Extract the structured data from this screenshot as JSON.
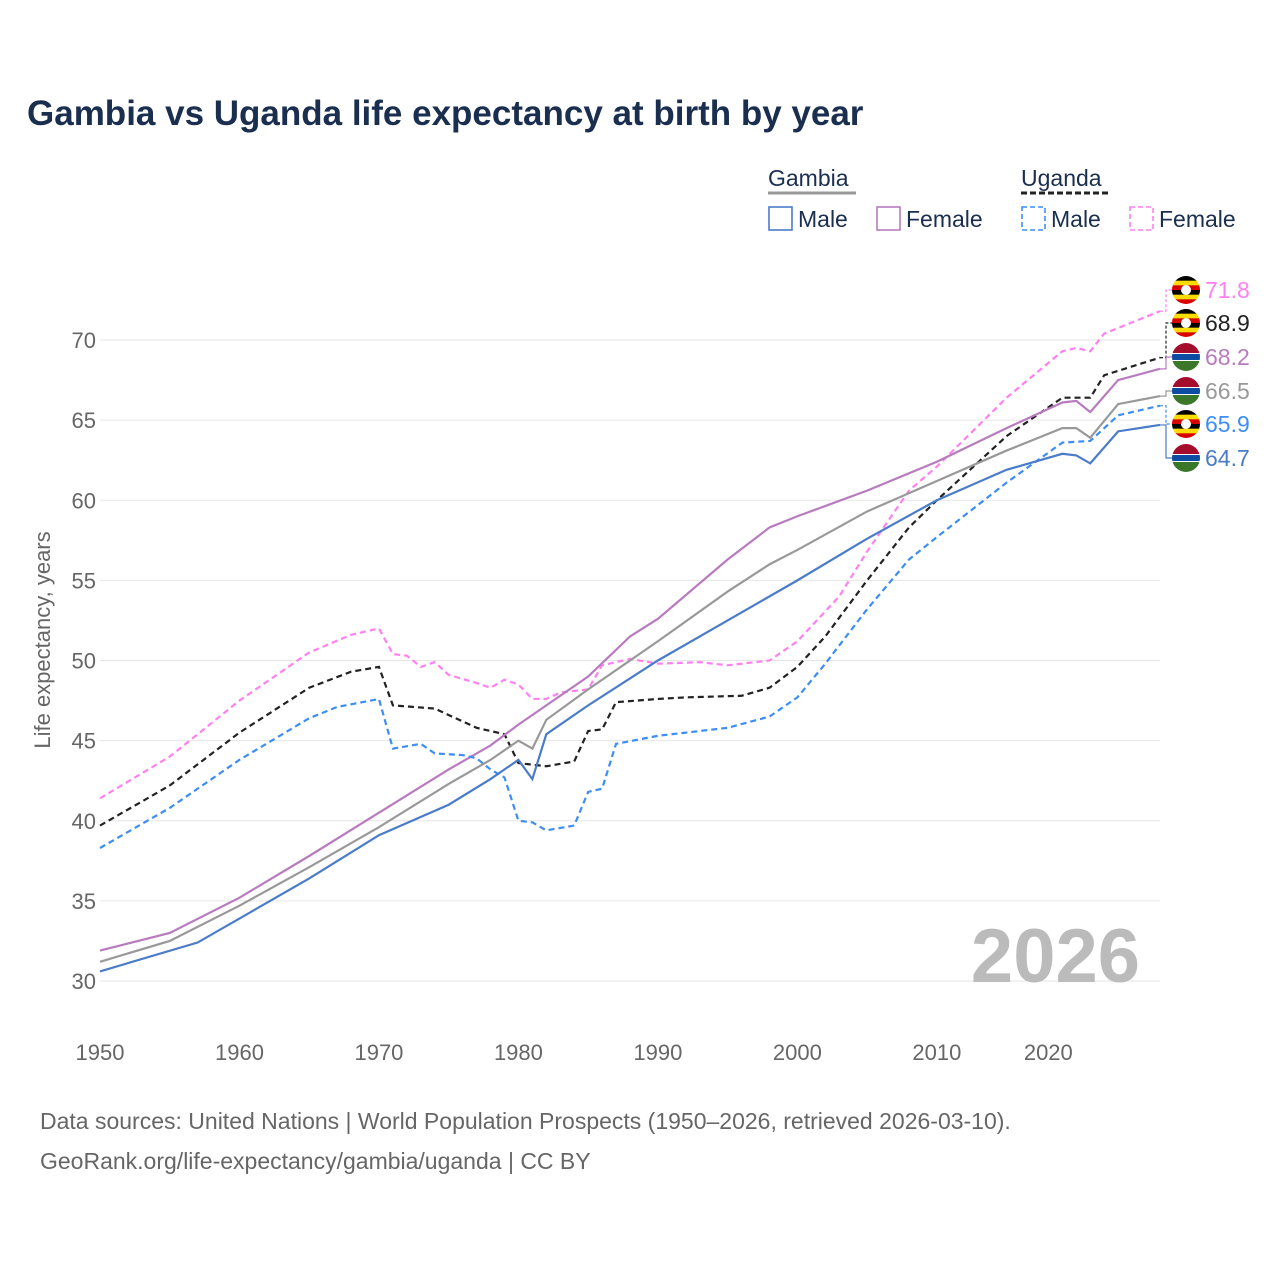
{
  "chart_data": {
    "type": "line",
    "title": "Gambia vs Uganda life expectancy at birth by year",
    "ylabel": "Life expectancy, years",
    "xlabel": "",
    "xlim": [
      1950,
      2026
    ],
    "ylim": [
      27.5,
      72
    ],
    "xticks": [
      1950,
      1960,
      1970,
      1980,
      1990,
      2000,
      2010,
      2020
    ],
    "yticks": [
      30,
      35,
      40,
      45,
      50,
      55,
      60,
      65,
      70
    ],
    "grid": true,
    "watermark": "2026",
    "legend": {
      "groups": [
        {
          "name": "Gambia",
          "items": [
            "Male",
            "Female"
          ]
        },
        {
          "name": "Uganda",
          "items": [
            "Male",
            "Female"
          ]
        }
      ],
      "placement": "top-right"
    },
    "series": [
      {
        "name": "Uganda Female",
        "country": "Uganda",
        "color": "#ff80f0",
        "dashed": true,
        "label": "71.8",
        "x": [
          1950,
          1955,
          1960,
          1965,
          1968,
          1970,
          1971,
          1972,
          1973,
          1974,
          1975,
          1977,
          1978,
          1979,
          1980,
          1981,
          1982,
          1983,
          1985,
          1986,
          1988,
          1990,
          1993,
          1995,
          1998,
          2000,
          2003,
          2005,
          2008,
          2010,
          2015,
          2019,
          2020,
          2021,
          2022,
          2026
        ],
        "y": [
          41.4,
          44.0,
          47.5,
          50.5,
          51.6,
          52.0,
          50.4,
          50.3,
          49.6,
          49.9,
          49.1,
          48.6,
          48.3,
          48.8,
          48.5,
          47.6,
          47.6,
          48.0,
          48.2,
          49.7,
          50.1,
          49.8,
          49.9,
          49.7,
          50.0,
          51.2,
          54.0,
          56.8,
          60.6,
          62.1,
          66.4,
          69.3,
          69.5,
          69.3,
          70.4,
          71.8
        ]
      },
      {
        "name": "Uganda",
        "country": "Uganda",
        "color": "#222222",
        "dashed": true,
        "label": "68.9",
        "x": [
          1950,
          1955,
          1960,
          1965,
          1968,
          1970,
          1971,
          1974,
          1977,
          1979,
          1980,
          1982,
          1984,
          1985,
          1986,
          1987,
          1990,
          1992,
          1996,
          1998,
          2000,
          2002,
          2005,
          2008,
          2010,
          2015,
          2019,
          2021,
          2022,
          2026
        ],
        "y": [
          39.7,
          42.2,
          45.5,
          48.3,
          49.3,
          49.6,
          47.2,
          47.0,
          45.8,
          45.4,
          43.6,
          43.4,
          43.7,
          45.6,
          45.7,
          47.4,
          47.6,
          47.7,
          47.8,
          48.3,
          49.6,
          51.5,
          55.0,
          58.3,
          60.0,
          64.0,
          66.4,
          66.4,
          67.8,
          68.9
        ]
      },
      {
        "name": "Gambia Female",
        "country": "Gambia",
        "color": "#b87bbf",
        "dashed": false,
        "label": "68.2",
        "x": [
          1950,
          1955,
          1960,
          1965,
          1970,
          1975,
          1978,
          1980,
          1982,
          1985,
          1988,
          1990,
          1995,
          1998,
          2000,
          2005,
          2010,
          2015,
          2019,
          2020,
          2021,
          2023,
          2026
        ],
        "y": [
          31.9,
          33.0,
          35.2,
          37.8,
          40.5,
          43.2,
          44.7,
          46.0,
          47.2,
          49.0,
          51.5,
          52.6,
          56.3,
          58.3,
          59.0,
          60.6,
          62.4,
          64.5,
          66.1,
          66.2,
          65.5,
          67.5,
          68.2
        ]
      },
      {
        "name": "Gambia",
        "country": "Gambia",
        "color": "#999999",
        "dashed": false,
        "label": "66.5",
        "x": [
          1950,
          1955,
          1960,
          1965,
          1970,
          1975,
          1978,
          1980,
          1981,
          1982,
          1985,
          1990,
          1995,
          1998,
          2000,
          2005,
          2010,
          2015,
          2019,
          2020,
          2021,
          2023,
          2026
        ],
        "y": [
          31.2,
          32.5,
          34.7,
          37.1,
          39.6,
          42.3,
          43.8,
          45.0,
          44.5,
          46.3,
          48.2,
          51.2,
          54.3,
          56.0,
          56.9,
          59.3,
          61.2,
          63.1,
          64.5,
          64.5,
          63.9,
          66.0,
          66.5
        ]
      },
      {
        "name": "Uganda Male",
        "country": "Uganda",
        "color": "#3d8df5",
        "dashed": true,
        "label": "65.9",
        "x": [
          1950,
          1955,
          1960,
          1965,
          1967,
          1970,
          1971,
          1973,
          1974,
          1976,
          1977,
          1978,
          1979,
          1980,
          1981,
          1982,
          1984,
          1985,
          1986,
          1987,
          1990,
          1995,
          1998,
          2000,
          2002,
          2005,
          2008,
          2010,
          2015,
          2019,
          2021,
          2023,
          2026
        ],
        "y": [
          38.3,
          40.8,
          43.8,
          46.4,
          47.1,
          47.6,
          44.5,
          44.8,
          44.2,
          44.1,
          43.9,
          43.2,
          42.7,
          40.0,
          39.9,
          39.4,
          39.7,
          41.8,
          42.0,
          44.8,
          45.3,
          45.8,
          46.5,
          47.7,
          49.8,
          53.2,
          56.3,
          57.7,
          61.1,
          63.6,
          63.7,
          65.3,
          65.9
        ]
      },
      {
        "name": "Gambia Male",
        "country": "Gambia",
        "color": "#4a7cc9",
        "dashed": false,
        "label": "64.7",
        "x": [
          1950,
          1957,
          1965,
          1970,
          1975,
          1978,
          1980,
          1981,
          1982,
          1985,
          1990,
          1995,
          2000,
          2005,
          2010,
          2015,
          2019,
          2020,
          2021,
          2023,
          2026
        ],
        "y": [
          30.6,
          32.4,
          36.4,
          39.1,
          41.0,
          42.6,
          43.8,
          42.6,
          45.4,
          47.2,
          50.0,
          52.5,
          55.0,
          57.6,
          60.0,
          61.9,
          62.9,
          62.8,
          62.3,
          64.3,
          64.7
        ]
      }
    ]
  },
  "footer": {
    "line1": "Data sources: United Nations | World Population Prospects (1950–2026, retrieved 2026-03-10).",
    "line2": "GeoRank.org/life-expectancy/gambia/uganda | CC BY"
  }
}
